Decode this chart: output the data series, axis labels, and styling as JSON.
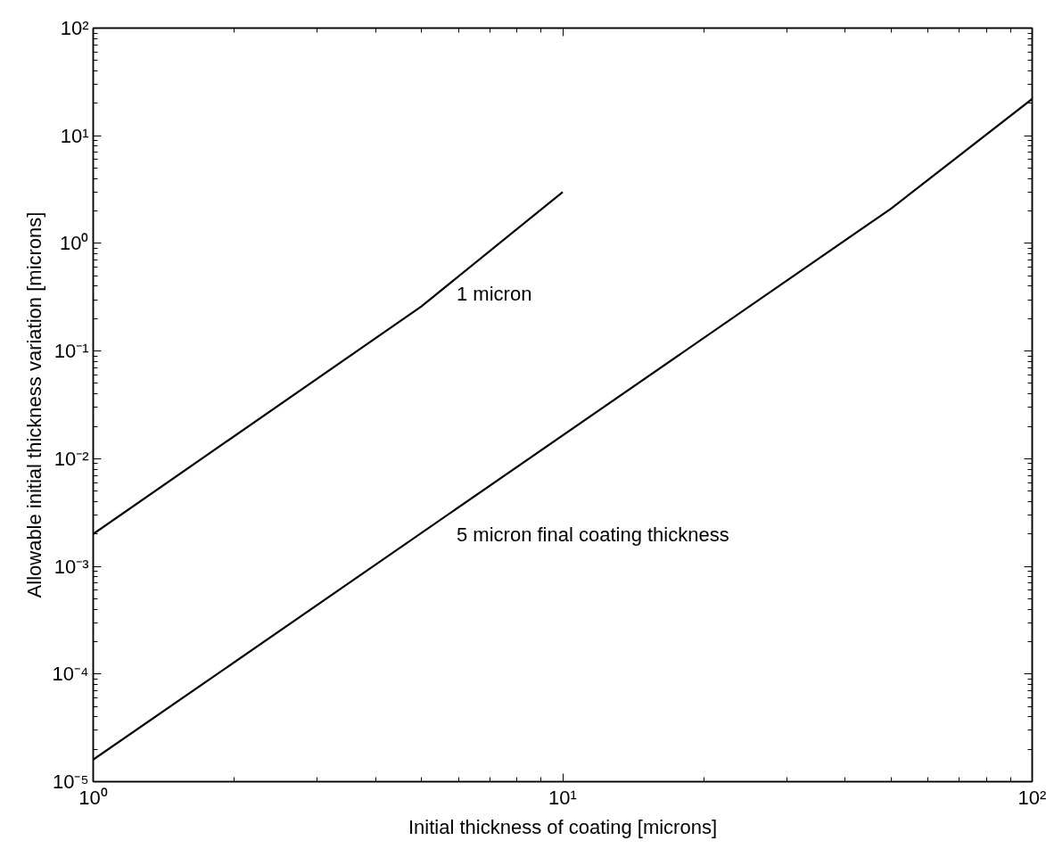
{
  "chart_data": {
    "type": "line",
    "xlabel": "Initial thickness of coating [microns]",
    "ylabel": "Allowable initial thickness variation [microns]",
    "log": "xy",
    "xlim": [
      1,
      100
    ],
    "ylim": [
      1e-05,
      100
    ],
    "xticks": [
      {
        "value": 1,
        "label": "10⁰"
      },
      {
        "value": 10,
        "label": "10¹"
      },
      {
        "value": 100,
        "label": "10²"
      }
    ],
    "yticks": [
      {
        "value": 1e-05,
        "label": "10⁻⁵"
      },
      {
        "value": 0.0001,
        "label": "10⁻⁴"
      },
      {
        "value": 0.001,
        "label": "10⁻³"
      },
      {
        "value": 0.01,
        "label": "10⁻²"
      },
      {
        "value": 0.1,
        "label": "10⁻¹"
      },
      {
        "value": 1,
        "label": "10⁰"
      },
      {
        "value": 10,
        "label": "10¹"
      },
      {
        "value": 100,
        "label": "10²"
      }
    ],
    "grid": false,
    "marker": "none",
    "line_style": "solid",
    "series": [
      {
        "color": "#000000",
        "x": [
          1,
          5,
          10
        ],
        "values": [
          0.002,
          0.26,
          3
        ]
      },
      {
        "color": "#000000",
        "x": [
          1,
          50,
          100
        ],
        "values": [
          1.6e-05,
          2.1,
          22
        ]
      }
    ],
    "annotations": [
      "1 micron",
      "5 micron final coating thickness"
    ]
  }
}
